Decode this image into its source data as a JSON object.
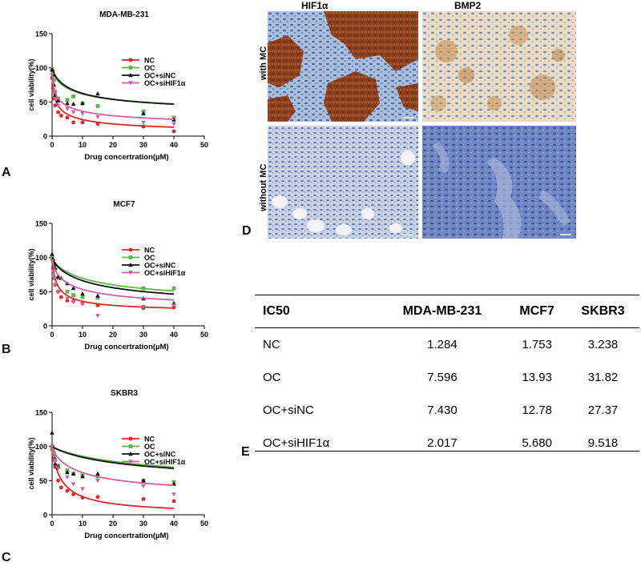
{
  "colors": {
    "NC": "#e3242b",
    "OC": "#5cb84a",
    "OC+siNC": "#111111",
    "OC+siHIF1a": "#d45fa0"
  },
  "panels": {
    "A": "A",
    "B": "B",
    "C": "C",
    "D": "D",
    "E": "E"
  },
  "chart_data": [
    {
      "type": "scatter",
      "title": "MDA-MB-231",
      "xlabel": "Drug concertration(µM)",
      "ylabel": "cell viability(%)",
      "xlim": [
        0,
        50
      ],
      "ylim": [
        0,
        150
      ],
      "xticks": [
        0,
        10,
        20,
        30,
        40,
        50
      ],
      "yticks": [
        0,
        50,
        100,
        150
      ],
      "legend_placement": "top-right",
      "series": [
        {
          "name": "NC",
          "color_key": "NC",
          "marker": "circle",
          "points": [
            [
              0,
              85
            ],
            [
              0.3,
              70
            ],
            [
              0.6,
              55
            ],
            [
              1,
              45
            ],
            [
              2,
              35
            ],
            [
              3,
              30
            ],
            [
              5,
              27
            ],
            [
              7,
              20
            ],
            [
              10,
              20
            ],
            [
              15,
              18
            ],
            [
              30,
              14
            ],
            [
              40,
              7
            ]
          ],
          "fit_ic50": 1.284,
          "fit_bottom": 2,
          "fit_top": 100,
          "fit_slope": 0.6
        },
        {
          "name": "OC",
          "color_key": "OC",
          "marker": "square",
          "points": [
            [
              0,
              98
            ],
            [
              0.3,
              95
            ],
            [
              0.6,
              82
            ],
            [
              1,
              65
            ],
            [
              2,
              55
            ],
            [
              5,
              53
            ],
            [
              7,
              58
            ],
            [
              10,
              48
            ],
            [
              15,
              44
            ],
            [
              30,
              36
            ],
            [
              40,
              27
            ]
          ],
          "fit_ic50": 7.596,
          "fit_bottom": 30,
          "fit_top": 100,
          "fit_slope": 0.7
        },
        {
          "name": "OC+siNC",
          "color_key": "OC+siNC",
          "marker": "triangle",
          "points": [
            [
              0,
              97
            ],
            [
              0.3,
              90
            ],
            [
              0.6,
              75
            ],
            [
              1,
              60
            ],
            [
              2,
              52
            ],
            [
              5,
              48
            ],
            [
              7,
              47
            ],
            [
              10,
              48
            ],
            [
              15,
              62
            ],
            [
              30,
              33
            ],
            [
              40,
              24
            ]
          ],
          "fit_ic50": 7.43,
          "fit_bottom": 33,
          "fit_top": 100,
          "fit_slope": 0.8
        },
        {
          "name": "OC+siHIF1α",
          "color_key": "OC+siHIF1a",
          "marker": "inv-triangle",
          "points": [
            [
              0,
              90
            ],
            [
              0.3,
              80
            ],
            [
              0.6,
              65
            ],
            [
              1,
              55
            ],
            [
              2,
              45
            ],
            [
              5,
              40
            ],
            [
              7,
              35
            ],
            [
              10,
              33
            ],
            [
              15,
              28
            ],
            [
              30,
              20
            ],
            [
              40,
              18
            ]
          ],
          "fit_ic50": 2.017,
          "fit_bottom": 10,
          "fit_top": 100,
          "fit_slope": 0.55
        }
      ]
    },
    {
      "type": "scatter",
      "title": "MCF7",
      "xlabel": "Drug concertration(µM)",
      "ylabel": "cell viability(%)",
      "xlim": [
        0,
        50
      ],
      "ylim": [
        0,
        150
      ],
      "xticks": [
        0,
        10,
        20,
        30,
        40,
        50
      ],
      "yticks": [
        0,
        50,
        100,
        150
      ],
      "legend_placement": "top-right",
      "series": [
        {
          "name": "NC",
          "color_key": "NC",
          "marker": "circle",
          "points": [
            [
              0,
              100
            ],
            [
              0.3,
              85
            ],
            [
              0.6,
              70
            ],
            [
              1,
              60
            ],
            [
              2,
              50
            ],
            [
              3,
              42
            ],
            [
              5,
              37
            ],
            [
              7,
              36
            ],
            [
              10,
              33
            ],
            [
              15,
              30
            ],
            [
              30,
              26
            ],
            [
              40,
              27
            ]
          ],
          "fit_ic50": 1.753,
          "fit_bottom": 20,
          "fit_top": 100,
          "fit_slope": 0.8
        },
        {
          "name": "OC",
          "color_key": "OC",
          "marker": "square",
          "points": [
            [
              0,
              100
            ],
            [
              0.3,
              95
            ],
            [
              0.6,
              90
            ],
            [
              1,
              82
            ],
            [
              2,
              70
            ],
            [
              5,
              50
            ],
            [
              7,
              45
            ],
            [
              10,
              42
            ],
            [
              15,
              41
            ],
            [
              30,
              55
            ],
            [
              40,
              55
            ]
          ],
          "fit_ic50": 13.93,
          "fit_bottom": 30,
          "fit_top": 100,
          "fit_slope": 0.8
        },
        {
          "name": "OC+siNC",
          "color_key": "OC+siNC",
          "marker": "triangle",
          "points": [
            [
              0,
              105
            ],
            [
              0.3,
              98
            ],
            [
              0.6,
              90
            ],
            [
              1,
              85
            ],
            [
              2,
              72
            ],
            [
              3,
              70
            ],
            [
              5,
              62
            ],
            [
              7,
              55
            ],
            [
              10,
              47
            ],
            [
              15,
              44
            ],
            [
              30,
              40
            ],
            [
              40,
              33
            ]
          ],
          "fit_ic50": 12.78,
          "fit_bottom": 25,
          "fit_top": 100,
          "fit_slope": 0.8
        },
        {
          "name": "OC+siHIF1α",
          "color_key": "OC+siHIF1a",
          "marker": "inv-triangle",
          "points": [
            [
              0,
              95
            ],
            [
              0.3,
              80
            ],
            [
              0.6,
              70
            ],
            [
              1,
              60
            ],
            [
              2,
              50
            ],
            [
              5,
              40
            ],
            [
              7,
              35
            ],
            [
              10,
              32
            ],
            [
              15,
              15
            ],
            [
              30,
              28
            ],
            [
              40,
              30
            ]
          ],
          "fit_ic50": 5.68,
          "fit_bottom": 22,
          "fit_top": 100,
          "fit_slope": 0.7
        }
      ]
    },
    {
      "type": "scatter",
      "title": "SKBR3",
      "xlabel": "Drug concertration(µM)",
      "ylabel": "cell viability(%)",
      "xlim": [
        0,
        50
      ],
      "ylim": [
        0,
        150
      ],
      "xticks": [
        0,
        10,
        20,
        30,
        40,
        50
      ],
      "yticks": [
        0,
        50,
        100,
        150
      ],
      "legend_placement": "top-right",
      "series": [
        {
          "name": "NC",
          "color_key": "NC",
          "marker": "circle",
          "points": [
            [
              0,
              95
            ],
            [
              0.3,
              88
            ],
            [
              0.6,
              80
            ],
            [
              1,
              70
            ],
            [
              2,
              50
            ],
            [
              3,
              40
            ],
            [
              5,
              35
            ],
            [
              7,
              30
            ],
            [
              10,
              25
            ],
            [
              15,
              26
            ],
            [
              30,
              23
            ],
            [
              40,
              20
            ]
          ],
          "fit_ic50": 3.238,
          "fit_bottom": 0,
          "fit_top": 100,
          "fit_slope": 0.9
        },
        {
          "name": "OC",
          "color_key": "OC",
          "marker": "square",
          "points": [
            [
              0,
              100
            ],
            [
              0.3,
              95
            ],
            [
              0.6,
              90
            ],
            [
              1,
              80
            ],
            [
              2,
              72
            ],
            [
              5,
              65
            ],
            [
              7,
              60
            ],
            [
              10,
              58
            ],
            [
              15,
              56
            ],
            [
              30,
              50
            ],
            [
              40,
              48
            ]
          ],
          "fit_ic50": 31.82,
          "fit_bottom": 45,
          "fit_top": 100,
          "fit_slope": 0.9
        },
        {
          "name": "OC+siNC",
          "color_key": "OC+siNC",
          "marker": "triangle",
          "points": [
            [
              0,
              120
            ],
            [
              0.3,
              100
            ],
            [
              0.6,
              85
            ],
            [
              1,
              75
            ],
            [
              2,
              70
            ],
            [
              5,
              62
            ],
            [
              7,
              60
            ],
            [
              10,
              56
            ],
            [
              15,
              60
            ],
            [
              30,
              50
            ],
            [
              40,
              45
            ]
          ],
          "fit_ic50": 27.37,
          "fit_bottom": 45,
          "fit_top": 100,
          "fit_slope": 0.9
        },
        {
          "name": "OC+siHIF1α",
          "color_key": "OC+siHIF1a",
          "marker": "inv-triangle",
          "points": [
            [
              0,
              100
            ],
            [
              0.3,
              92
            ],
            [
              0.6,
              85
            ],
            [
              1,
              78
            ],
            [
              2,
              68
            ],
            [
              5,
              55
            ],
            [
              7,
              45
            ],
            [
              10,
              38
            ],
            [
              15,
              50
            ],
            [
              30,
              42
            ],
            [
              40,
              30
            ]
          ],
          "fit_ic50": 9.518,
          "fit_bottom": 25,
          "fit_top": 100,
          "fit_slope": 0.8
        }
      ]
    },
    {
      "type": "table",
      "headers": [
        "IC50",
        "MDA-MB-231",
        "MCF7",
        "SKBR3"
      ],
      "rows": [
        [
          "NC",
          "1.284",
          "1.753",
          "3.238"
        ],
        [
          "OC",
          "7.596",
          "13.93",
          "31.82"
        ],
        [
          "OC+siNC",
          "7.430",
          "12.78",
          "27.37"
        ],
        [
          "OC+siHIF1α",
          "2.017",
          "5.680",
          "9.518"
        ]
      ]
    }
  ],
  "image_panel": {
    "columns": [
      "HIF1α",
      "BMP2"
    ],
    "rows": [
      "with MC",
      "without MC"
    ]
  }
}
